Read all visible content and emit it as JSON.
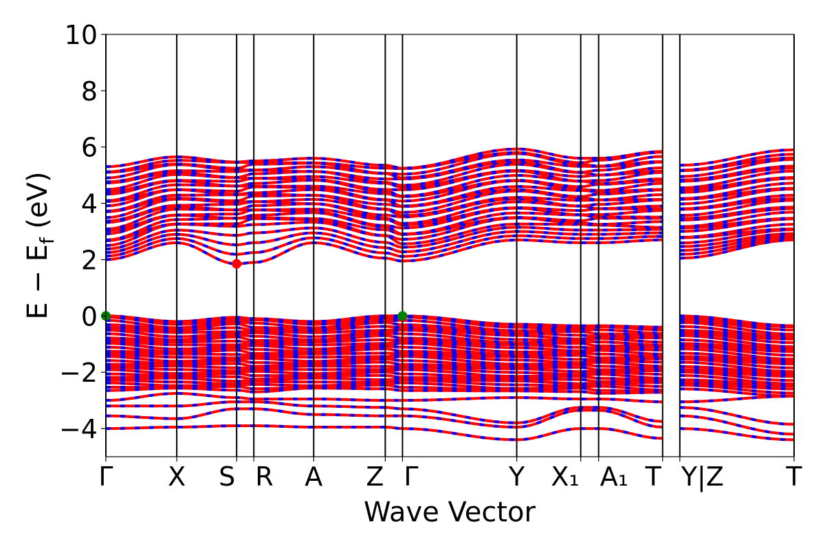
{
  "chart_data": {
    "type": "line",
    "xlabel": "Wave Vector",
    "ylabel_main": "E − E",
    "ylabel_sub": "f",
    "ylabel_unit": " (eV)",
    "ylim": [
      -5,
      10
    ],
    "yticks": [
      -4,
      -2,
      0,
      2,
      4,
      6,
      8,
      10
    ],
    "ytick_labels": [
      "−4",
      "−2",
      "0",
      "2",
      "4",
      "6",
      "8",
      "10"
    ],
    "grid": false,
    "kpoints": [
      0,
      0.103,
      0.19,
      0.215,
      0.302,
      0.406,
      0.431,
      0.597,
      0.69,
      0.716,
      0.809,
      0.834,
      1.0
    ],
    "xtick_labels": [
      "Γ",
      "X",
      "S",
      "R",
      "A",
      "Z",
      "Γ",
      "Y",
      "X₁",
      "A₁",
      "T",
      "Y|Z",
      "T"
    ],
    "segment_breaks_after": [
      10
    ],
    "colors": {
      "band": "#ff0000",
      "band_dash": "#0000ff",
      "vbm": "#008000",
      "cbm": "#ff0000"
    },
    "bands": {
      "conduction_min": [
        2.0,
        2.6,
        1.85,
        1.9,
        2.6,
        2.05,
        1.95,
        2.7,
        2.6,
        2.6,
        2.7,
        2.05,
        2.7
      ],
      "conduction_block_bottom": [
        2.5,
        3.2,
        3.2,
        3.3,
        3.3,
        2.8,
        2.6,
        3.3,
        3.2,
        3.2,
        3.2,
        2.6,
        3.0
      ],
      "conduction_top": [
        5.3,
        5.65,
        5.5,
        5.55,
        5.6,
        5.35,
        5.3,
        5.95,
        5.6,
        5.6,
        5.9,
        5.35,
        5.9
      ],
      "valence_max": [
        0.0,
        -0.2,
        -0.05,
        -0.1,
        -0.2,
        0.0,
        0.0,
        -0.3,
        -0.35,
        -0.35,
        -0.4,
        0.0,
        -0.35
      ],
      "valence_block_bottom": [
        -2.6,
        -2.6,
        -2.65,
        -2.65,
        -2.6,
        -2.6,
        -2.6,
        -2.7,
        -2.7,
        -2.7,
        -2.75,
        -2.6,
        -2.8
      ],
      "deep": [
        [
          -3.0,
          -2.75,
          -2.9,
          -2.95,
          -2.95,
          -3.0,
          -3.0,
          -2.9,
          -2.95,
          -2.95,
          -3.05,
          -3.05,
          -2.85
        ],
        [
          -3.2,
          -3.2,
          -3.05,
          -3.05,
          -3.2,
          -3.25,
          -3.3,
          -3.8,
          -3.25,
          -3.25,
          -3.75,
          -3.25,
          -3.85
        ],
        [
          -3.55,
          -3.65,
          -3.3,
          -3.3,
          -3.5,
          -3.55,
          -3.55,
          -3.95,
          -3.35,
          -3.35,
          -3.95,
          -3.55,
          -4.2
        ],
        [
          -4.0,
          -3.95,
          -3.9,
          -3.9,
          -3.95,
          -3.95,
          -4.0,
          -4.4,
          -4.0,
          -4.0,
          -4.35,
          -4.0,
          -4.4
        ]
      ]
    },
    "vbm_points": [
      {
        "k": 0,
        "e": 0.0
      },
      {
        "k": 0.431,
        "e": 0.0
      }
    ],
    "cbm_points": [
      {
        "k": 0.19,
        "e": 1.85
      }
    ]
  }
}
